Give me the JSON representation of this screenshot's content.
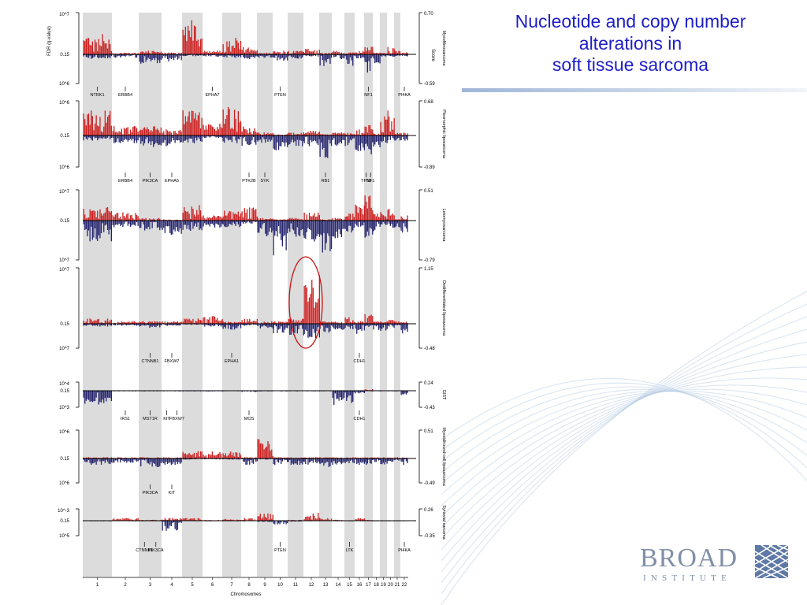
{
  "slide_title_lines": [
    "Nucleotide and copy number",
    "alterations in",
    "soft tissue sarcoma"
  ],
  "logo": {
    "word": "BROAD",
    "subword": "INSTITUTE"
  },
  "colors": {
    "title": "#1d1dc8",
    "gain": "#cc2222",
    "loss": "#25256e",
    "band": "#dcdcdc",
    "circle": "#cc1111"
  },
  "x_axis": {
    "label": "Chromosomes",
    "chromosomes": [
      "1",
      "2",
      "3",
      "4",
      "5",
      "6",
      "7",
      "8",
      "9",
      "10",
      "11",
      "12",
      "13",
      "14",
      "15",
      "16",
      "17",
      "18",
      "19",
      "20",
      "21",
      "22"
    ]
  },
  "y_axis_label": "FDR (q-value)",
  "right_axis_label": "Score",
  "panels": [
    {
      "name": "Myxofibrosarcoma",
      "q_top": "10^7",
      "q_mid": "0.15",
      "q_bottom": "10^6",
      "score_top": "0.70",
      "score_bottom": "-0.59",
      "genes": [
        {
          "label": "NTRK1",
          "chrom": "1"
        },
        {
          "label": "ERBB4",
          "chrom": "2"
        },
        {
          "label": "EPHA7",
          "chrom": "6"
        },
        {
          "label": "PTEN",
          "chrom": "10"
        },
        {
          "label": "NF1",
          "chrom": "17"
        },
        {
          "label": "PI4KA",
          "chrom": "22"
        }
      ]
    },
    {
      "name": "Pleomorphic liposarcoma",
      "q_top": "10^6",
      "q_mid": "0.15",
      "q_bottom": "10^6",
      "score_top": "0.68",
      "score_bottom": "-0.89",
      "genes": [
        {
          "label": "ERBB4",
          "chrom": "2"
        },
        {
          "label": "PIK3CA",
          "chrom": "3"
        },
        {
          "label": "EPHA5",
          "chrom": "4"
        },
        {
          "label": "PTK2B",
          "chrom": "8"
        },
        {
          "label": "SYK",
          "chrom": "9"
        },
        {
          "label": "RB1",
          "chrom": "13"
        },
        {
          "label": "TP53",
          "chrom": "17"
        },
        {
          "label": "NF1",
          "chrom": "17"
        }
      ]
    },
    {
      "name": "Leiomyosarcoma",
      "q_top": "10^7",
      "q_mid": "0.15",
      "q_bottom": "10^7",
      "score_top": "0.51",
      "score_bottom": "-0.79",
      "genes": []
    },
    {
      "name": "Dedifferentiated liposarcoma",
      "q_top": "10^7",
      "q_mid": "0.15",
      "q_bottom": "10^7",
      "score_top": "1.15",
      "score_bottom": "-0.48",
      "genes": [
        {
          "label": "CTNNB1",
          "chrom": "3"
        },
        {
          "label": "FBXW7",
          "chrom": "4"
        },
        {
          "label": "EPHA1",
          "chrom": "7"
        },
        {
          "label": "CDH1",
          "chrom": "16"
        }
      ]
    },
    {
      "name": "GIST",
      "q_top": "10^4",
      "q_mid": "0.15",
      "q_bottom": "10^3",
      "score_top": "0.24",
      "score_bottom": "-0.43",
      "genes": [
        {
          "label": "IRS1",
          "chrom": "2"
        },
        {
          "label": "MST1R",
          "chrom": "3"
        },
        {
          "label": "KIT",
          "chrom": "4"
        },
        {
          "label": "FBXW7",
          "chrom": "4"
        },
        {
          "label": "MOS",
          "chrom": "8"
        },
        {
          "label": "CDH1",
          "chrom": "16"
        }
      ]
    },
    {
      "name": "Myxoid/round-cell liposarcoma",
      "q_top": "10^6",
      "q_mid": "0.15",
      "q_bottom": "10^6",
      "score_top": "0.51",
      "score_bottom": "-0.49",
      "genes": [
        {
          "label": "PIK3CA",
          "chrom": "3"
        },
        {
          "label": "KIT",
          "chrom": "4"
        }
      ]
    },
    {
      "name": "Synovial sarcoma",
      "q_top": "10^-3",
      "q_mid": "0.15",
      "q_bottom": "10^5",
      "score_top": "0.26",
      "score_bottom": "-0.35",
      "genes": [
        {
          "label": "CTNNB1",
          "chrom": "3"
        },
        {
          "label": "PIK3CA",
          "chrom": "3"
        },
        {
          "label": "PTEN",
          "chrom": "10"
        },
        {
          "label": "LTK",
          "chrom": "15"
        },
        {
          "label": "PI4KA",
          "chrom": "22"
        }
      ]
    }
  ]
}
